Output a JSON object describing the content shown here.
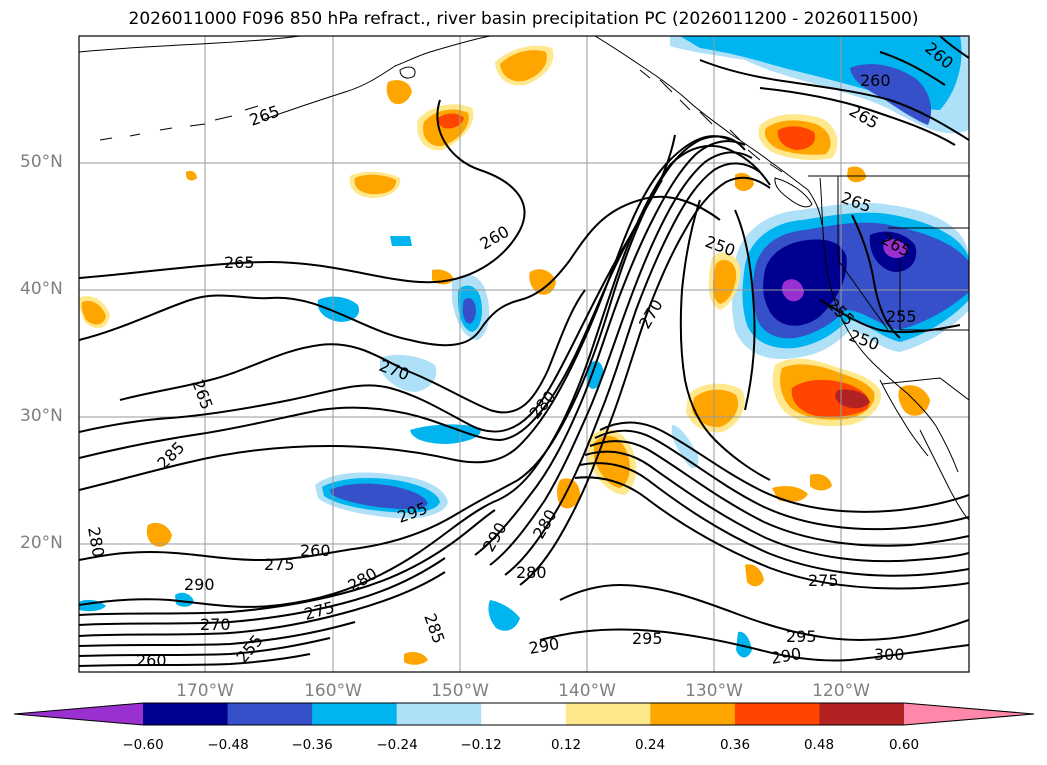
{
  "title": "2026011000 F096 850 hPa refract., river basin precipitation PC (2026011200 - 2026011500)",
  "map": {
    "lat_labels": [
      "50°N",
      "40°N",
      "30°N",
      "20°N"
    ],
    "lon_labels": [
      "170°W",
      "160°W",
      "150°W",
      "140°W",
      "130°W",
      "120°W"
    ],
    "axis_label_color": "#7f7f7f",
    "grid": true,
    "contour_labels": [
      "260",
      "265",
      "265",
      "270",
      "265",
      "280",
      "285",
      "280",
      "290",
      "295",
      "270",
      "275",
      "275",
      "280",
      "285",
      "290",
      "280",
      "290",
      "295",
      "295",
      "290",
      "300",
      "255",
      "260",
      "260",
      "260",
      "265",
      "265",
      "250",
      "255",
      "250",
      "270",
      "275",
      "280",
      "260",
      "255",
      "265"
    ]
  },
  "colorbar": {
    "tick_labels": [
      "−0.60",
      "−0.48",
      "−0.36",
      "−0.24",
      "−0.12",
      "0.12",
      "0.24",
      "0.36",
      "0.48",
      "0.60"
    ],
    "colors": [
      "#9b30d0",
      "#000090",
      "#3550c8",
      "#00b4f0",
      "#aee0f8",
      "#ffffff",
      "#ffe88c",
      "#ffa500",
      "#ff4500",
      "#b22222",
      "#ff88aa"
    ]
  }
}
